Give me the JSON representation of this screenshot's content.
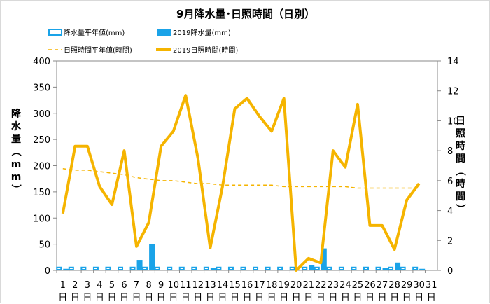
{
  "chart_data": {
    "type": "bar+line",
    "title": "9月降水量･日照時間（日別）",
    "categories": [
      "1",
      "2",
      "3",
      "4",
      "5",
      "6",
      "7",
      "8",
      "9",
      "10",
      "11",
      "12",
      "13",
      "14",
      "15",
      "16",
      "17",
      "18",
      "19",
      "20",
      "21",
      "22",
      "23",
      "24",
      "25",
      "26",
      "27",
      "28",
      "29",
      "30",
      "31"
    ],
    "day_label": "日",
    "ylabel_left": "降水量（mm）",
    "ylabel_right": "日照時間（時間）",
    "ylim_left": [
      0,
      400
    ],
    "yticks_left": [
      0,
      50,
      100,
      150,
      200,
      250,
      300,
      350,
      400
    ],
    "ylim_right": [
      0,
      14
    ],
    "yticks_right": [
      0,
      2,
      4,
      6,
      8,
      10,
      12,
      14
    ],
    "legend": {
      "rain_normal": "降水量平年値(mm)",
      "rain_2019": "2019降水量(mm)",
      "sun_normal": "日照時間平年値(時間)",
      "sun_2019": "2019日照時間(時間)"
    },
    "series": [
      {
        "name": "降水量平年値(mm)",
        "axis": "left",
        "kind": "bar",
        "color": "#1aa3e8",
        "values": [
          7,
          7,
          7,
          7,
          7,
          7,
          7,
          7,
          7,
          7,
          7,
          7,
          7,
          7,
          7,
          7,
          7,
          7,
          7,
          7,
          7,
          7,
          7,
          7,
          7,
          7,
          7,
          7,
          7,
          7,
          null
        ]
      },
      {
        "name": "2019降水量(mm)",
        "axis": "left",
        "kind": "bar",
        "color": "#1aa3e8",
        "values": [
          3,
          0,
          0,
          0,
          0,
          0,
          20,
          50,
          0,
          0,
          0,
          0,
          4,
          0,
          0,
          0,
          0,
          0,
          0,
          0,
          10,
          42,
          0,
          0,
          0,
          0,
          5,
          15,
          0,
          3,
          null
        ]
      },
      {
        "name": "日照時間平年値(時間)",
        "axis": "right",
        "kind": "line",
        "color": "#f5b400",
        "dashed": true,
        "values": [
          6.8,
          6.7,
          6.7,
          6.6,
          6.5,
          6.4,
          6.2,
          6.1,
          6.0,
          6.0,
          5.9,
          5.8,
          5.8,
          5.7,
          5.7,
          5.7,
          5.7,
          5.7,
          5.6,
          5.6,
          5.6,
          5.6,
          5.6,
          5.6,
          5.5,
          5.5,
          5.5,
          5.5,
          5.5,
          5.5,
          null
        ]
      },
      {
        "name": "2019日照時間(時間)",
        "axis": "right",
        "kind": "line",
        "color": "#f5b400",
        "values": [
          3.8,
          8.3,
          8.3,
          5.6,
          4.4,
          8.0,
          1.6,
          3.2,
          8.3,
          9.3,
          11.7,
          7.5,
          1.5,
          5.6,
          10.8,
          11.5,
          10.3,
          9.3,
          11.5,
          0.0,
          0.8,
          0.5,
          8.0,
          6.9,
          11.1,
          3.0,
          3.0,
          1.4,
          4.7,
          5.8,
          null
        ]
      }
    ]
  }
}
